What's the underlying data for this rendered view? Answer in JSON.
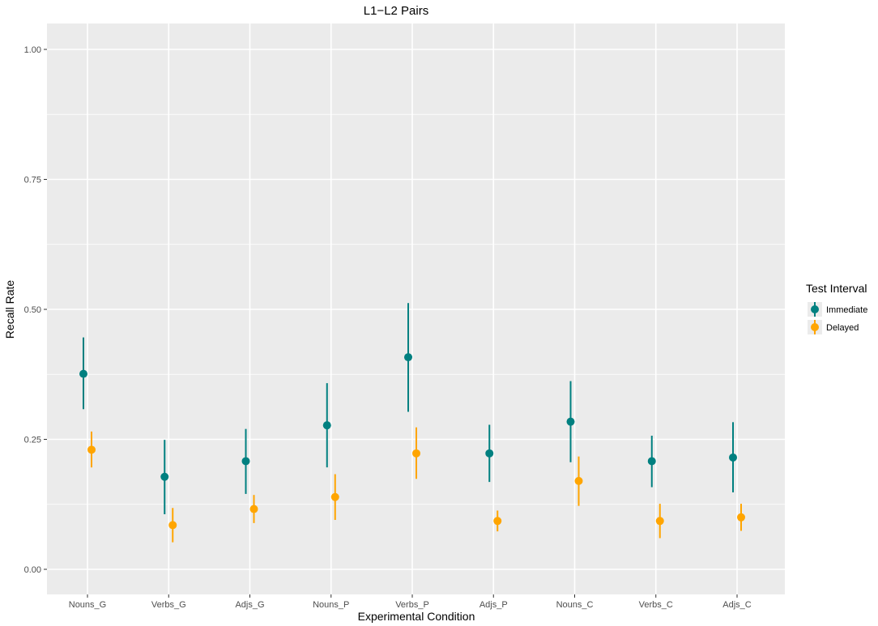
{
  "chart_data": {
    "type": "scatter",
    "subtype": "pointrange",
    "title": "L1−L2 Pairs",
    "xlabel": "Experimental Condition",
    "ylabel": "Recall Rate",
    "categories": [
      "Nouns_G",
      "Verbs_G",
      "Adjs_G",
      "Nouns_P",
      "Verbs_P",
      "Adjs_P",
      "Nouns_C",
      "Verbs_C",
      "Adjs_C"
    ],
    "ylim": [
      0.0,
      1.0
    ],
    "yticks": [
      0.0,
      0.25,
      0.5,
      0.75,
      1.0
    ],
    "ytick_labels": [
      "0.00",
      "0.25",
      "0.50",
      "0.75",
      "1.00"
    ],
    "grid": true,
    "legend": {
      "title": "Test Interval",
      "position": "right"
    },
    "series": [
      {
        "name": "Immediate",
        "color": "#008080",
        "values": [
          0.376,
          0.178,
          0.208,
          0.277,
          0.408,
          0.223,
          0.284,
          0.208,
          0.215
        ],
        "lower": [
          0.308,
          0.106,
          0.145,
          0.196,
          0.303,
          0.168,
          0.206,
          0.158,
          0.148
        ],
        "upper": [
          0.446,
          0.249,
          0.27,
          0.358,
          0.512,
          0.278,
          0.362,
          0.257,
          0.283
        ]
      },
      {
        "name": "Delayed",
        "color": "#FFA500",
        "values": [
          0.23,
          0.085,
          0.116,
          0.139,
          0.223,
          0.093,
          0.17,
          0.093,
          0.1
        ],
        "lower": [
          0.196,
          0.052,
          0.089,
          0.095,
          0.174,
          0.073,
          0.122,
          0.06,
          0.074
        ],
        "upper": [
          0.265,
          0.118,
          0.143,
          0.183,
          0.273,
          0.113,
          0.217,
          0.126,
          0.126
        ]
      }
    ]
  }
}
